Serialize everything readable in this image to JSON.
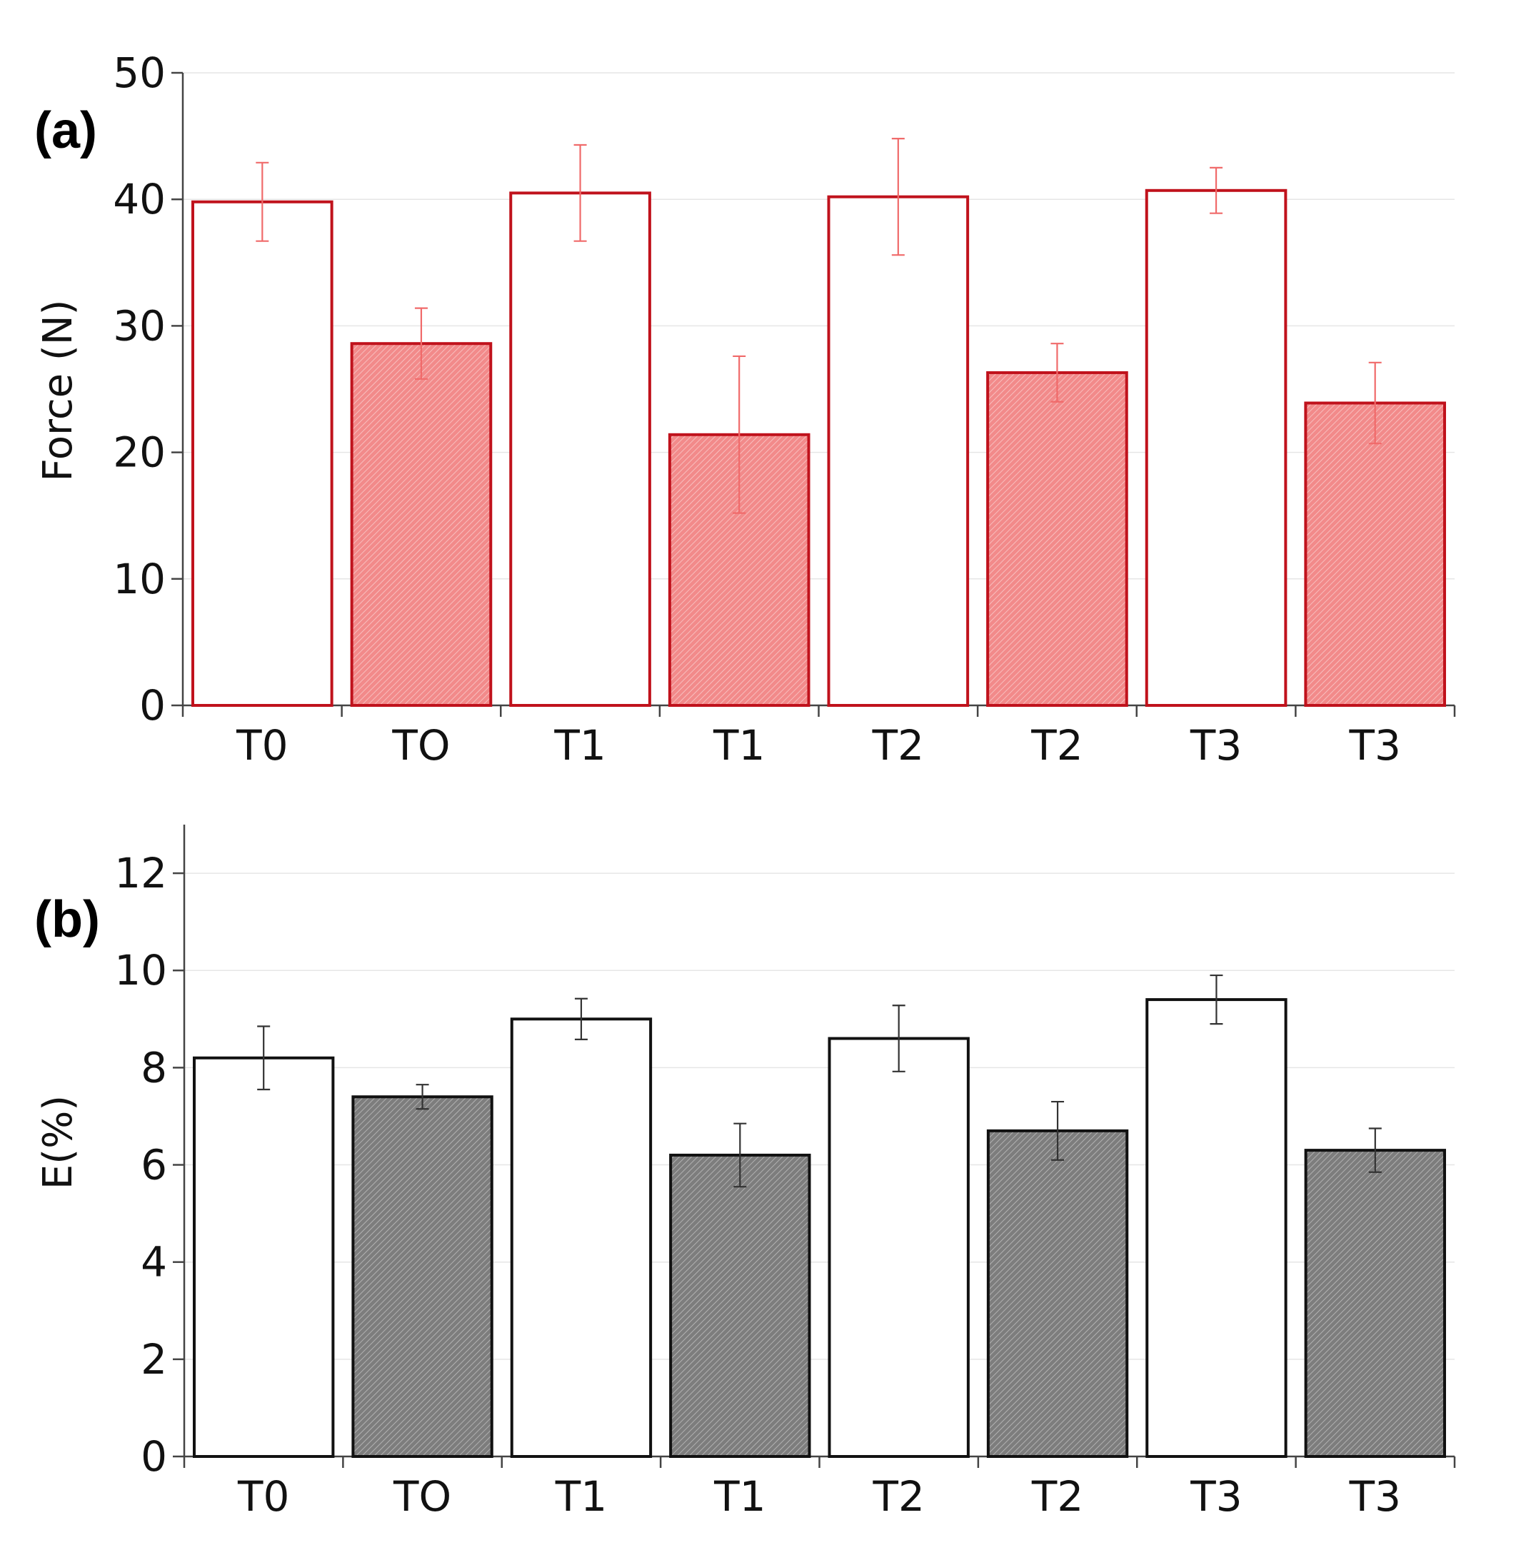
{
  "chart_data": [
    {
      "panel": "(a)",
      "type": "bar",
      "ylabel": "Force (N)",
      "xlabel": "",
      "ylim": [
        0,
        50
      ],
      "yticks": [
        0,
        10,
        20,
        30,
        40,
        50
      ],
      "grid": true,
      "categories": [
        "T0",
        "TO",
        "T1",
        "T1",
        "T2",
        "T2",
        "T3",
        "T3"
      ],
      "values": [
        39.8,
        28.6,
        40.5,
        21.4,
        40.2,
        26.3,
        40.7,
        23.9
      ],
      "errors": [
        3.1,
        2.8,
        3.8,
        6.2,
        4.6,
        2.3,
        1.8,
        3.2
      ],
      "filled": [
        false,
        true,
        false,
        true,
        false,
        true,
        false,
        true
      ],
      "colors": {
        "stroke": "#c0121c",
        "fill": "#f28a8a",
        "hatch": "#ffffff",
        "error": "#f06a6a"
      }
    },
    {
      "panel": "(b)",
      "type": "bar",
      "ylabel": "E(%)",
      "xlabel": "",
      "ylim": [
        0,
        13
      ],
      "yticks": [
        0,
        2,
        4,
        6,
        8,
        10,
        12
      ],
      "grid": true,
      "categories": [
        "T0",
        "TO",
        "T1",
        "T1",
        "T2",
        "T2",
        "T3",
        "T3"
      ],
      "values": [
        8.2,
        7.4,
        9.0,
        6.2,
        8.6,
        6.7,
        9.4,
        6.3
      ],
      "errors": [
        0.65,
        0.25,
        0.42,
        0.65,
        0.68,
        0.6,
        0.5,
        0.45
      ],
      "filled": [
        false,
        true,
        false,
        true,
        false,
        true,
        false,
        true
      ],
      "colors": {
        "stroke": "#111111",
        "fill": "#8c8c8c",
        "hatch": "#ffffff",
        "error": "#333333"
      }
    }
  ]
}
